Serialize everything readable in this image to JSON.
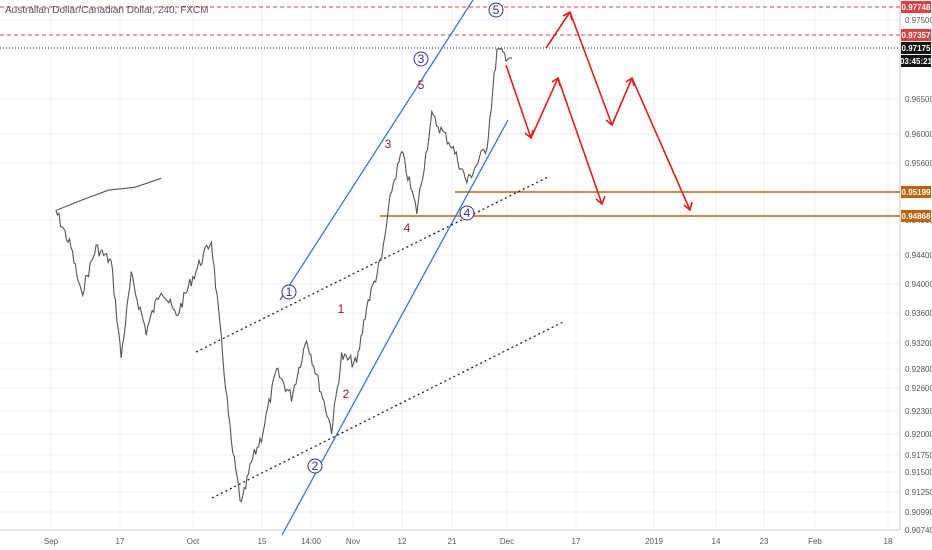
{
  "header": {
    "title": "Australian Dollar/Canadian Dollar, 240, FXCM"
  },
  "colors": {
    "price": "#555555",
    "channel": "#3b78c4",
    "forecast": "#e01e1e",
    "support": "#c0640a",
    "resistance": "#e04040",
    "current": "#222222",
    "wave_circle": "#303090",
    "wave_minor": "#8a1c30",
    "grid": "#f0f0f0"
  },
  "chart_data": {
    "type": "line",
    "title": "Australian Dollar/Canadian Dollar, 240, FXCM",
    "ylim": [
      0.9072,
      0.98
    ],
    "y_ticks": [
      "0.97500",
      "0.96500",
      "0.96000",
      "0.95600",
      "0.94800",
      "0.94400",
      "0.94000",
      "0.93600",
      "0.93200",
      "0.92800",
      "0.92600",
      "0.92300",
      "0.92000",
      "0.91750",
      "0.91500",
      "0.91250",
      "0.90990",
      "0.90740"
    ],
    "x_ticks": [
      "Sep",
      "17",
      "Oct",
      "15",
      "14:00",
      "Nov",
      "12",
      "21",
      "Dec",
      "17",
      "2019",
      "14",
      "23",
      "Feb",
      "18"
    ],
    "series": [
      {
        "name": "",
        "approx_path": [
          [
            "Aug 27",
            0.9555
          ],
          [
            "Sep 1",
            0.951
          ],
          [
            "Sep 4",
            0.946
          ],
          [
            "Sep 6",
            0.9395
          ],
          [
            "Sep 9",
            0.946
          ],
          [
            "Sep 12",
            0.944
          ],
          [
            "Sep 14",
            0.931
          ],
          [
            "Sep 16",
            0.942
          ],
          [
            "Sep 19",
            0.9345
          ],
          [
            "Sep 22",
            0.9405
          ],
          [
            "Sep 25",
            0.9365
          ],
          [
            "Sep 28",
            0.9415
          ],
          [
            "Oct 2",
            0.947
          ],
          [
            "Oct 4",
            0.933
          ],
          [
            "Oct 6",
            0.919
          ],
          [
            "Oct 8",
            0.9105
          ],
          [
            "Oct 10",
            0.9165
          ],
          [
            "Oct 12",
            0.92
          ],
          [
            "Oct 15",
            0.929
          ],
          [
            "Oct 18",
            0.9255
          ],
          [
            "Oct 21",
            0.9335
          ],
          [
            "Oct 23",
            0.9285
          ],
          [
            "Oct 26",
            0.921
          ],
          [
            "Oct 28",
            0.931
          ],
          [
            "Oct 31",
            0.93
          ],
          [
            "Nov 2",
            0.938
          ],
          [
            "Nov 5",
            0.9445
          ],
          [
            "Nov 7",
            0.954
          ],
          [
            "Nov 9",
            0.959
          ],
          [
            "Nov 12",
            0.951
          ],
          [
            "Nov 15",
            0.964
          ],
          [
            "Nov 19",
            0.96
          ],
          [
            "Nov 22",
            0.955
          ],
          [
            "Nov 26",
            0.96
          ],
          [
            "Nov 28",
            0.973
          ],
          [
            "Dec 1",
            0.972
          ]
        ]
      }
    ],
    "levels": [
      {
        "value": 0.97748,
        "label": "0.97748",
        "style": "dashed"
      },
      {
        "value": 0.97357,
        "label": "0.97357",
        "style": "dashed"
      },
      {
        "value": 0.97175,
        "label": "0.97175",
        "style": "solid",
        "note": "03:45:21"
      },
      {
        "value": 0.95199,
        "label": "0.95199",
        "style": "solid"
      },
      {
        "value": 0.94868,
        "label": "0.94868",
        "style": "solid"
      }
    ],
    "wave_labels": {
      "circled": [
        "1",
        "2",
        "3",
        "4",
        "5"
      ],
      "minor": [
        "1",
        "2",
        "3",
        "4",
        "5"
      ]
    },
    "grid": true
  }
}
